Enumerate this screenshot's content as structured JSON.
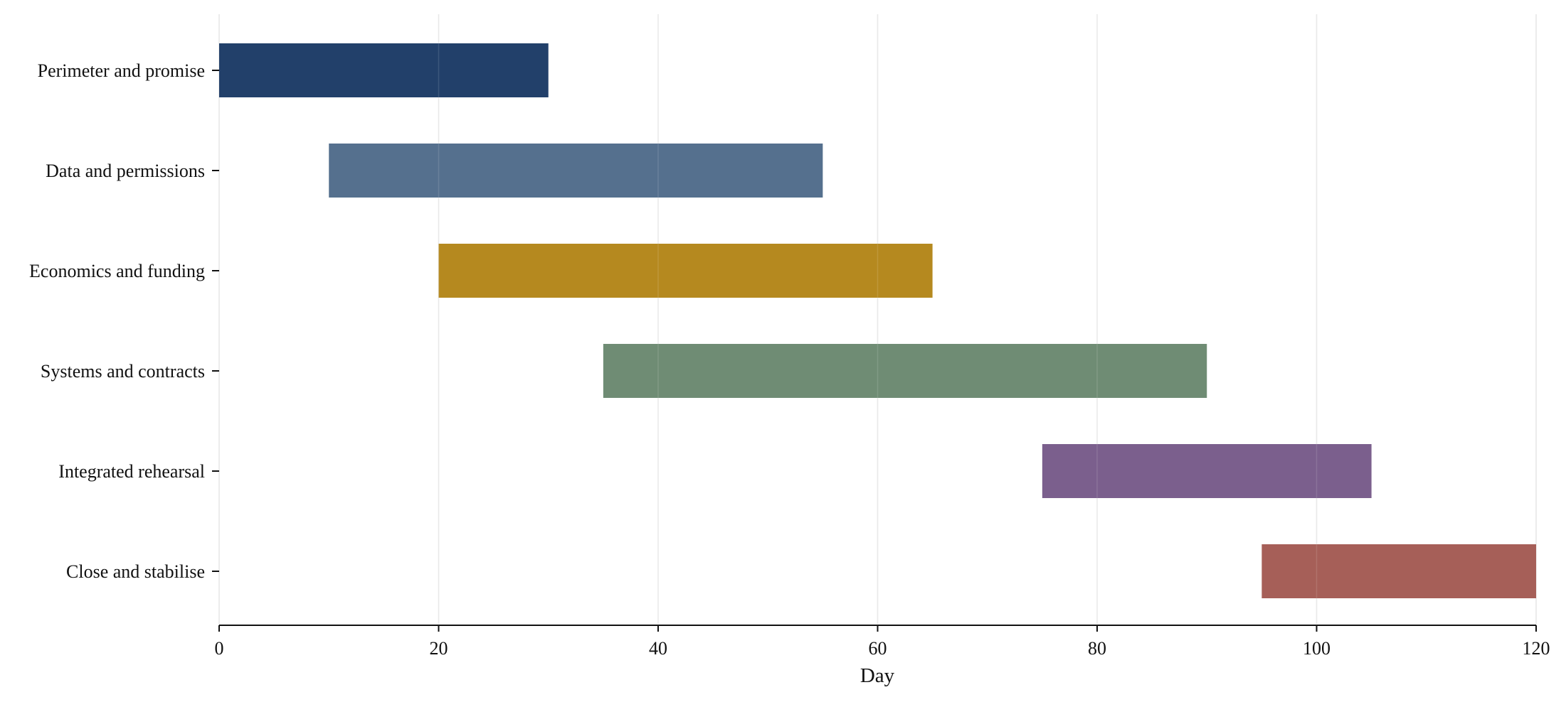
{
  "chart_data": {
    "type": "bar",
    "orientation": "horizontal",
    "style": "gantt",
    "title": "",
    "xlabel": "Day",
    "ylabel": "",
    "xlim": [
      0,
      120
    ],
    "xticks": [
      0,
      20,
      40,
      60,
      80,
      100,
      120
    ],
    "grid": "vertical",
    "legend": "none",
    "tasks": [
      {
        "label": "Perimeter and promise",
        "start": 0,
        "end": 30,
        "color": "#22406a"
      },
      {
        "label": "Data and permissions",
        "start": 10,
        "end": 55,
        "color": "#55708e"
      },
      {
        "label": "Economics and funding",
        "start": 20,
        "end": 65,
        "color": "#b5891f"
      },
      {
        "label": "Systems and contracts",
        "start": 35,
        "end": 90,
        "color": "#6f8c74"
      },
      {
        "label": "Integrated rehearsal",
        "start": 75,
        "end": 105,
        "color": "#7b5f8d"
      },
      {
        "label": "Close and stabilise",
        "start": 95,
        "end": 120,
        "color": "#a65f58"
      }
    ]
  }
}
